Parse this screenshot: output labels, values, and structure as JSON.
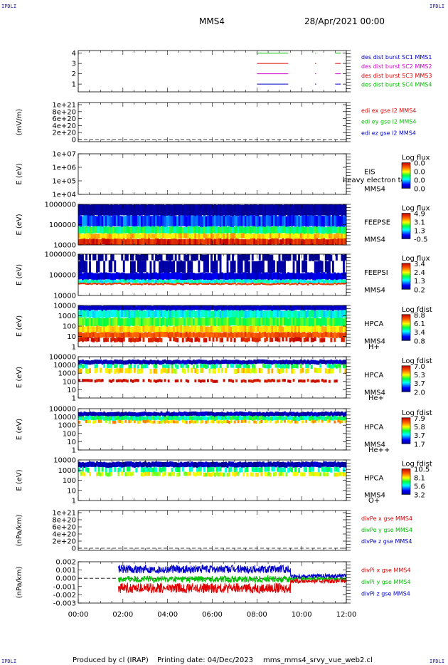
{
  "header": {
    "corner_label": "IPDLI",
    "title": "MMS4",
    "date": "28/Apr/2021 00:00"
  },
  "footer": {
    "produced": "Produced by cl (IRAP)",
    "printing": "Printing date: 04/Dec/2023",
    "script": "mms_mms4_srvy_vue_web2.cl"
  },
  "colors": {
    "cyan_line": "#00d0ff",
    "green": "#00c000",
    "red": "#e00000",
    "blue": "#0000c8",
    "magenta": "#d000d0"
  },
  "chart_data": [
    {
      "type": "line",
      "id": "burst",
      "ylabel": "",
      "yticks": [
        "4",
        "3",
        "2",
        "1"
      ],
      "legend": [
        {
          "text": "des dist burst SC1 MMS1",
          "color": "#0000c8"
        },
        {
          "text": "des dist burst SC2 MMS2",
          "color": "#d000d0"
        },
        {
          "text": "des dist burst SC3 MMS3",
          "color": "#e00000"
        },
        {
          "text": "des dist burst SC4 MMS4",
          "color": "#00c000"
        }
      ],
      "intervals": [
        {
          "level": 4,
          "color": "#00c000",
          "start": 8.0,
          "end": 9.4
        },
        {
          "level": 4,
          "color": "#00c000",
          "start": 10.6,
          "end": 10.65
        },
        {
          "level": 4,
          "color": "#00c000",
          "start": 11.5,
          "end": 11.75
        },
        {
          "level": 3,
          "color": "#e00000",
          "start": 8.0,
          "end": 9.4
        },
        {
          "level": 3,
          "color": "#e00000",
          "start": 10.6,
          "end": 10.65
        },
        {
          "level": 3,
          "color": "#e00000",
          "start": 11.5,
          "end": 11.75
        },
        {
          "level": 2,
          "color": "#d000d0",
          "start": 8.0,
          "end": 9.4
        },
        {
          "level": 2,
          "color": "#d000d0",
          "start": 10.6,
          "end": 10.65
        },
        {
          "level": 2,
          "color": "#d000d0",
          "start": 11.5,
          "end": 11.75
        },
        {
          "level": 1,
          "color": "#0000c8",
          "start": 8.0,
          "end": 9.4
        },
        {
          "level": 1,
          "color": "#0000c8",
          "start": 10.6,
          "end": 10.65
        },
        {
          "level": 1,
          "color": "#0000c8",
          "start": 11.5,
          "end": 11.75
        }
      ]
    },
    {
      "type": "line",
      "id": "edi",
      "ylabel": "(mV/m)",
      "yticks": [
        "1e+21",
        "8e+20",
        "6e+20",
        "4e+20",
        "2e+20",
        "0"
      ],
      "legend": [
        {
          "text": "edi ex gse l2 MMS4",
          "color": "#e00000"
        },
        {
          "text": "edi ey gse l2 MMS4",
          "color": "#00c000"
        },
        {
          "text": "edi ez gse l2 MMS4",
          "color": "#0000c8"
        }
      ]
    },
    {
      "type": "heatmap",
      "id": "eis",
      "ylabel": "E (eV)",
      "yticks": [
        "1e+07",
        "1e+06",
        "1e+05",
        "1e+04"
      ],
      "labels": [
        "EIS",
        "MMS4"
      ],
      "overlay_text": "heavy electron to",
      "cbar_title": "Log flux",
      "cbar_ticks": [
        "0.0",
        "0.0",
        "0.0",
        "0.0"
      ],
      "empty": true
    },
    {
      "type": "heatmap",
      "id": "feeps_e",
      "ylabel": "E (eV)",
      "yticks": [
        "1000000",
        "100000",
        "10000"
      ],
      "labels": [
        "FEEPSE",
        "MMS4"
      ],
      "cbar_title": "Log flux",
      "cbar_ticks": [
        "4.9",
        "3.1",
        "1.3",
        "-0.5"
      ],
      "cover": [
        0.0,
        12.0
      ],
      "bands": [
        {
          "from": 0.0,
          "to": 0.28,
          "c": [
            0.0,
            0.05
          ]
        },
        {
          "from": 0.28,
          "to": 0.55,
          "c": [
            0.12,
            0.28
          ]
        },
        {
          "from": 0.55,
          "to": 0.72,
          "c": [
            0.38,
            0.55
          ]
        },
        {
          "from": 0.72,
          "to": 0.85,
          "c": [
            0.62,
            0.78
          ]
        },
        {
          "from": 0.85,
          "to": 1.0,
          "c": [
            0.85,
            1.0
          ]
        }
      ]
    },
    {
      "type": "heatmap",
      "id": "feeps_i",
      "ylabel": "E (eV)",
      "yticks": [
        "1000000",
        "100000",
        "10000"
      ],
      "labels": [
        "FEEPSI",
        "MMS4"
      ],
      "cbar_title": "Log flux",
      "cbar_ticks": [
        "3.4",
        "2.4",
        "1.3",
        "0.2"
      ],
      "cover": [
        0.0,
        12.0
      ],
      "bands": [
        {
          "from": 0.0,
          "to": 0.16,
          "c": [
            0.0,
            0.0
          ],
          "sparse": true
        },
        {
          "from": 0.16,
          "to": 0.45,
          "c": [
            0.0,
            0.05
          ],
          "sparse": true
        },
        {
          "from": 0.45,
          "to": 0.62,
          "c": [
            0.05,
            0.15
          ]
        },
        {
          "from": 0.62,
          "to": 0.7,
          "c": [
            0.3,
            0.45
          ]
        },
        {
          "from": 0.7,
          "to": 0.74,
          "c": [
            0.85,
            0.92
          ]
        }
      ]
    },
    {
      "type": "heatmap",
      "id": "hpca_h",
      "ylabel": "E (eV)",
      "yticks": [
        "10000",
        "1000",
        "100",
        "10",
        "1"
      ],
      "labels": [
        "HPCA",
        "MMS4",
        "H+"
      ],
      "cbar_title": "Log fdist",
      "cbar_ticks": [
        "8.8",
        "6.1",
        "3.4",
        "0.8"
      ],
      "cover": [
        0.0,
        12.0
      ],
      "bands": [
        {
          "from": 0.0,
          "to": 0.12,
          "c": [
            0.05,
            0.1
          ]
        },
        {
          "from": 0.12,
          "to": 0.3,
          "c": [
            0.3,
            0.45
          ]
        },
        {
          "from": 0.3,
          "to": 0.5,
          "c": [
            0.45,
            0.6
          ]
        },
        {
          "from": 0.5,
          "to": 0.65,
          "c": [
            0.62,
            0.75
          ]
        },
        {
          "from": 0.65,
          "to": 0.78,
          "c": [
            0.8,
            0.9
          ]
        },
        {
          "from": 0.78,
          "to": 0.88,
          "c": [
            0.9,
            1.0
          ],
          "sparse": true
        }
      ]
    },
    {
      "type": "heatmap",
      "id": "hpca_he",
      "ylabel": "E (eV)",
      "yticks": [
        "100000",
        "10000",
        "1000",
        "100",
        "10",
        "1"
      ],
      "labels": [
        "HPCA",
        "MMS4",
        "He+"
      ],
      "cbar_title": "Log fdist",
      "cbar_ticks": [
        "7.0",
        "5.3",
        "3.7",
        "2.0"
      ],
      "cover": [
        0.0,
        12.0
      ],
      "bands": [
        {
          "from": 0.08,
          "to": 0.18,
          "c": [
            0.0,
            0.1
          ]
        },
        {
          "from": 0.18,
          "to": 0.28,
          "c": [
            0.35,
            0.55
          ],
          "sparse": true
        },
        {
          "from": 0.28,
          "to": 0.4,
          "c": [
            0.6,
            0.75
          ],
          "sparse": true
        },
        {
          "from": 0.55,
          "to": 0.62,
          "c": [
            0.92,
            1.0
          ],
          "sparse": true
        }
      ]
    },
    {
      "type": "heatmap",
      "id": "hpca_hepp",
      "ylabel": "E (eV)",
      "yticks": [
        "100000",
        "10000",
        "1000",
        "100",
        "10",
        "1"
      ],
      "labels": [
        "HPCA",
        "MMS4",
        "He++"
      ],
      "cbar_title": "Log fdist",
      "cbar_ticks": [
        "7.9",
        "5.8",
        "3.7",
        "1.7"
      ],
      "cover": [
        0.0,
        12.0
      ],
      "bands": [
        {
          "from": 0.08,
          "to": 0.18,
          "c": [
            0.0,
            0.1
          ]
        },
        {
          "from": 0.18,
          "to": 0.28,
          "c": [
            0.35,
            0.55
          ]
        },
        {
          "from": 0.28,
          "to": 0.35,
          "c": [
            0.6,
            0.8
          ],
          "sparse": true
        }
      ]
    },
    {
      "type": "heatmap",
      "id": "hpca_o",
      "ylabel": "E (eV)",
      "yticks": [
        "10000",
        "1000",
        "100",
        "10",
        "1"
      ],
      "labels": [
        "HPCA",
        "MMS4",
        "O+"
      ],
      "cbar_title": "Log fdist",
      "cbar_ticks": [
        "10.5",
        "8.1",
        "5.6",
        "3.2"
      ],
      "cover": [
        0.0,
        12.0
      ],
      "bands": [
        {
          "from": 0.05,
          "to": 0.18,
          "c": [
            0.0,
            0.1
          ]
        },
        {
          "from": 0.18,
          "to": 0.3,
          "c": [
            0.35,
            0.5
          ],
          "sparse": true
        },
        {
          "from": 0.3,
          "to": 0.4,
          "c": [
            0.55,
            0.7
          ],
          "sparse": true
        }
      ]
    },
    {
      "type": "line",
      "id": "divpe",
      "ylabel": "(nPa/km)",
      "yticks": [
        "1e+21",
        "8e+20",
        "6e+20",
        "4e+20",
        "2e+20",
        "0"
      ],
      "legend": [
        {
          "text": "divPe x gse MMS4",
          "color": "#e00000"
        },
        {
          "text": "divPe y gse MMS4",
          "color": "#00c000"
        },
        {
          "text": "divPe z gse MMS4",
          "color": "#0000c8"
        }
      ]
    },
    {
      "type": "line",
      "id": "divpi",
      "ylabel": "(nPa/km)",
      "yticks": [
        "0.002",
        "0.001",
        "0.000",
        "-0.001",
        "-0.002",
        "-0.003"
      ],
      "ylim": [
        -0.003,
        0.002
      ],
      "legend": [
        {
          "text": "divPi x gse MMS4",
          "color": "#e00000"
        },
        {
          "text": "divPi y gse MMS4",
          "color": "#00c000"
        },
        {
          "text": "divPi z gse MMS4",
          "color": "#0000c8"
        }
      ],
      "series": [
        {
          "name": "divPi x gse MMS4",
          "color": "#e00000",
          "start": 1.8,
          "end": 12.0,
          "mean": -0.0012,
          "amp": 0.0006
        },
        {
          "name": "divPi y gse MMS4",
          "color": "#00c000",
          "start": 1.8,
          "end": 12.0,
          "mean": -0.0001,
          "amp": 0.0004
        },
        {
          "name": "divPi z gse MMS4",
          "color": "#0000c8",
          "start": 1.8,
          "end": 12.0,
          "mean": 0.0011,
          "amp": 0.0005
        }
      ]
    }
  ],
  "xaxis": {
    "ticks": [
      "00:00",
      "02:00",
      "04:00",
      "06:00",
      "08:00",
      "10:00",
      "12:00"
    ],
    "range_hours": [
      0,
      12
    ]
  }
}
